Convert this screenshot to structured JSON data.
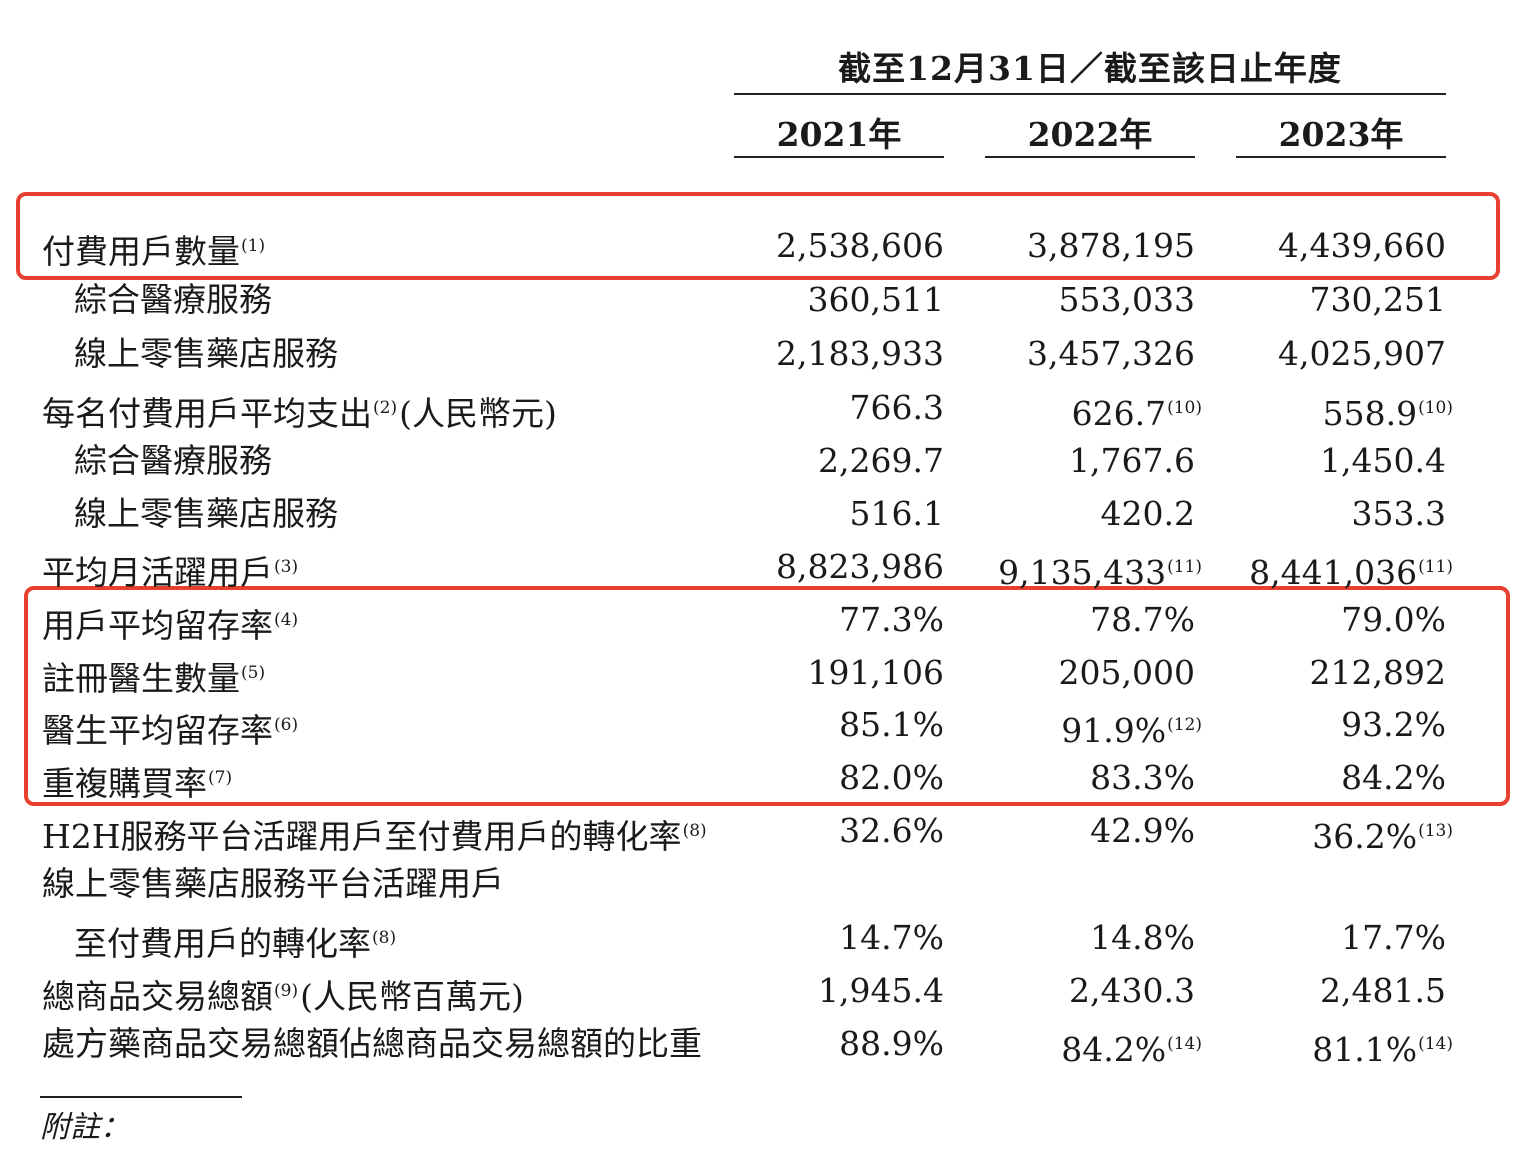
{
  "header": {
    "title": "截至12月31日／截至該日止年度",
    "years": [
      "2021年",
      "2022年",
      "2023年"
    ]
  },
  "rows": [
    {
      "label": "付費用戶數量",
      "note": "(1)",
      "values": [
        "2,538,606",
        "3,878,195",
        "4,439,660"
      ],
      "value_notes": [
        "",
        "",
        ""
      ]
    },
    {
      "label": "綜合醫療服務",
      "note": "",
      "values": [
        "360,511",
        "553,033",
        "730,251"
      ],
      "value_notes": [
        "",
        "",
        ""
      ]
    },
    {
      "label": "線上零售藥店服務",
      "note": "",
      "values": [
        "2,183,933",
        "3,457,326",
        "4,025,907"
      ],
      "value_notes": [
        "",
        "",
        ""
      ]
    },
    {
      "label": "每名付費用戶平均支出",
      "note": "(2)",
      "suffix": "(人民幣元)",
      "values": [
        "766.3",
        "626.7",
        "558.9"
      ],
      "value_notes": [
        "",
        "(10)",
        "(10)"
      ]
    },
    {
      "label": "綜合醫療服務",
      "note": "",
      "values": [
        "2,269.7",
        "1,767.6",
        "1,450.4"
      ],
      "value_notes": [
        "",
        "",
        ""
      ]
    },
    {
      "label": "線上零售藥店服務",
      "note": "",
      "values": [
        "516.1",
        "420.2",
        "353.3"
      ],
      "value_notes": [
        "",
        "",
        ""
      ]
    },
    {
      "label": "平均月活躍用戶",
      "note": "(3)",
      "values": [
        "8,823,986",
        "9,135,433",
        "8,441,036"
      ],
      "value_notes": [
        "",
        "(11)",
        "(11)"
      ]
    },
    {
      "label": "用戶平均留存率",
      "note": "(4)",
      "values": [
        "77.3%",
        "78.7%",
        "79.0%"
      ],
      "value_notes": [
        "",
        "",
        ""
      ]
    },
    {
      "label": "註冊醫生數量",
      "note": "(5)",
      "values": [
        "191,106",
        "205,000",
        "212,892"
      ],
      "value_notes": [
        "",
        "",
        ""
      ]
    },
    {
      "label": "醫生平均留存率",
      "note": "(6)",
      "values": [
        "85.1%",
        "91.9%",
        "93.2%"
      ],
      "value_notes": [
        "",
        "(12)",
        ""
      ]
    },
    {
      "label": "重複購買率",
      "note": "(7)",
      "values": [
        "82.0%",
        "83.3%",
        "84.2%"
      ],
      "value_notes": [
        "",
        "",
        ""
      ]
    },
    {
      "label": "H2H服務平台活躍用戶至付費用戶的轉化率",
      "note": "(8)",
      "values": [
        "32.6%",
        "42.9%",
        "36.2%"
      ],
      "value_notes": [
        "",
        "",
        "(13)"
      ]
    },
    {
      "label": "線上零售藥店服務平台活躍用戶",
      "note": "",
      "values": [
        "",
        "",
        ""
      ],
      "value_notes": [
        "",
        "",
        ""
      ]
    },
    {
      "label": "至付費用戶的轉化率",
      "note": "(8)",
      "values": [
        "14.7%",
        "14.8%",
        "17.7%"
      ],
      "value_notes": [
        "",
        "",
        ""
      ]
    },
    {
      "label": "總商品交易總額",
      "note": "(9)",
      "suffix": "(人民幣百萬元)",
      "values": [
        "1,945.4",
        "2,430.3",
        "2,481.5"
      ],
      "value_notes": [
        "",
        "",
        ""
      ]
    },
    {
      "label": "處方藥商品交易總額佔總商品交易總額的比重",
      "note": "",
      "values": [
        "88.9%",
        "84.2%",
        "81.1%"
      ],
      "value_notes": [
        "",
        "(14)",
        "(14)"
      ]
    }
  ],
  "footer": {
    "label": "附註："
  },
  "colors": {
    "highlight": "#e8402e",
    "text": "#1a1a1a"
  }
}
